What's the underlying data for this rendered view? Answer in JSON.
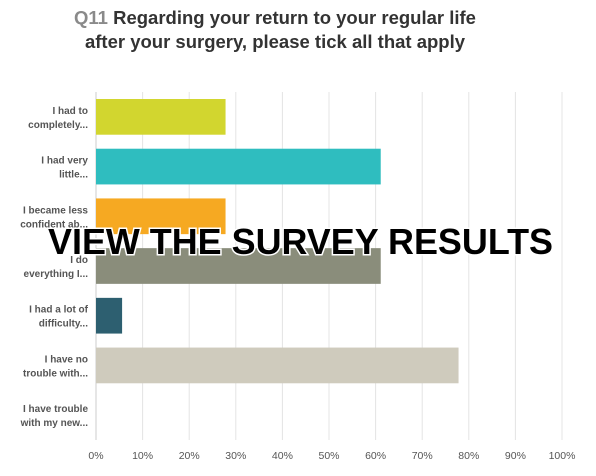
{
  "chart_data": {
    "type": "bar",
    "orientation": "horizontal",
    "title_prefix": "Q11",
    "title": "Regarding your return to your regular life after your surgery, please tick all that apply",
    "categories": [
      [
        "I had to",
        "completely..."
      ],
      [
        "I had very",
        "little..."
      ],
      [
        "I became less",
        "confident ab..."
      ],
      [
        "I do",
        "everything I..."
      ],
      [
        "I had a lot of",
        "difficulty..."
      ],
      [
        "I have no",
        "trouble with..."
      ],
      [
        "I have trouble",
        "with my new..."
      ]
    ],
    "values": [
      27.8,
      61.1,
      27.8,
      61.1,
      5.6,
      77.8,
      0
    ],
    "colors": [
      "#d2d62f",
      "#2fbdbf",
      "#f6a922",
      "#8a8d7b",
      "#2d5f70",
      "#cfcbbd",
      "#999999"
    ],
    "xlim": [
      0,
      100
    ],
    "xticks": [
      {
        "value": 0,
        "label": "0%"
      },
      {
        "value": 10,
        "label": "10%"
      },
      {
        "value": 20,
        "label": "20%"
      },
      {
        "value": 30,
        "label": "30%"
      },
      {
        "value": 40,
        "label": "40%"
      },
      {
        "value": 50,
        "label": "50%"
      },
      {
        "value": 60,
        "label": "60%"
      },
      {
        "value": 70,
        "label": "70%"
      },
      {
        "value": 80,
        "label": "80%"
      },
      {
        "value": 90,
        "label": "90%"
      },
      {
        "value": 100,
        "label": "100%"
      }
    ],
    "grid": true,
    "overlay_text": "VIEW THE SURVEY RESULTS"
  }
}
